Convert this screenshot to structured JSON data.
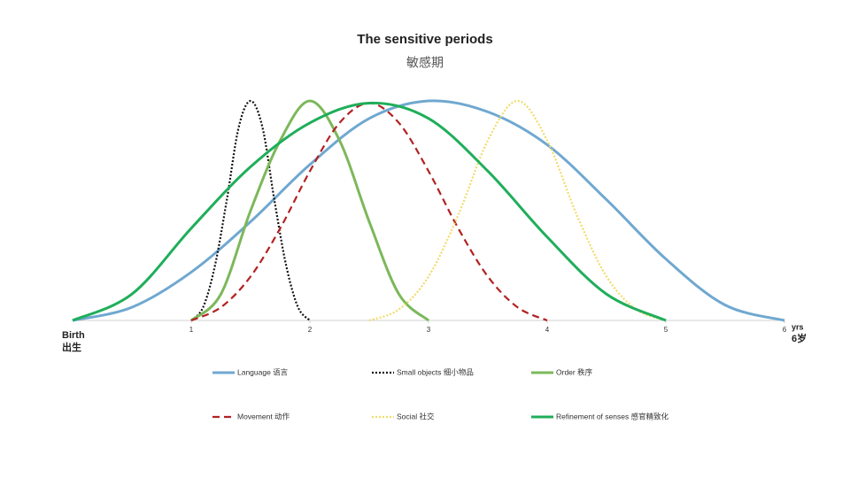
{
  "chart_data": {
    "type": "line",
    "title": "The sensitive periods",
    "subtitle": "敏感期",
    "start_label": "Birth",
    "start_label_cn": "出生",
    "end_label": "yrs",
    "end_label_cn": "6岁",
    "xlim": [
      0,
      6
    ],
    "xticks": [
      1,
      2,
      3,
      4,
      5,
      6
    ],
    "ylim": [
      0,
      1
    ],
    "series": [
      {
        "name": "Language 语言",
        "color": "#6fa8d0",
        "dash": "solid",
        "x": [
          0,
          0.5,
          1,
          1.5,
          2,
          2.5,
          3,
          3.5,
          4,
          4.5,
          5,
          5.5,
          6
        ],
        "values": [
          0,
          0.06,
          0.22,
          0.45,
          0.71,
          0.92,
          1.0,
          0.95,
          0.8,
          0.55,
          0.28,
          0.07,
          0
        ]
      },
      {
        "name": "Small objects 细小物品",
        "color": "#111111",
        "dash": "dotted",
        "x": [
          1,
          1.1,
          1.2,
          1.3,
          1.4,
          1.5,
          1.6,
          1.7,
          1.8,
          1.9,
          2
        ],
        "values": [
          0,
          0.06,
          0.25,
          0.55,
          0.88,
          1.0,
          0.88,
          0.55,
          0.25,
          0.06,
          0
        ]
      },
      {
        "name": "Order 秩序",
        "color": "#7cb85a",
        "dash": "solid",
        "x": [
          1,
          1.25,
          1.5,
          1.75,
          2,
          2.25,
          2.5,
          2.75,
          3
        ],
        "values": [
          0,
          0.12,
          0.5,
          0.82,
          1.0,
          0.82,
          0.45,
          0.12,
          0
        ]
      },
      {
        "name": "Movement 动作",
        "color": "#b22222",
        "dash": "dashed",
        "x": [
          1,
          1.25,
          1.5,
          1.75,
          2,
          2.25,
          2.5,
          2.75,
          3,
          3.25,
          3.5,
          3.75,
          4
        ],
        "values": [
          0,
          0.06,
          0.2,
          0.42,
          0.68,
          0.9,
          0.99,
          0.9,
          0.68,
          0.42,
          0.2,
          0.06,
          0
        ]
      },
      {
        "name": "Social 社交",
        "color": "#f0dc6a",
        "dash": "dotted",
        "x": [
          2.5,
          2.75,
          3,
          3.25,
          3.5,
          3.75,
          4,
          4.25,
          4.5,
          4.75,
          5
        ],
        "values": [
          0,
          0.05,
          0.2,
          0.48,
          0.82,
          1.0,
          0.82,
          0.48,
          0.2,
          0.05,
          0
        ]
      },
      {
        "name": "Refinement of senses 感官精致化",
        "color": "#1fae5a",
        "dash": "solid",
        "x": [
          0,
          0.5,
          1,
          1.5,
          2,
          2.5,
          3,
          3.5,
          4,
          4.5,
          5
        ],
        "values": [
          0,
          0.12,
          0.42,
          0.7,
          0.9,
          0.99,
          0.92,
          0.68,
          0.38,
          0.12,
          0
        ]
      }
    ]
  }
}
